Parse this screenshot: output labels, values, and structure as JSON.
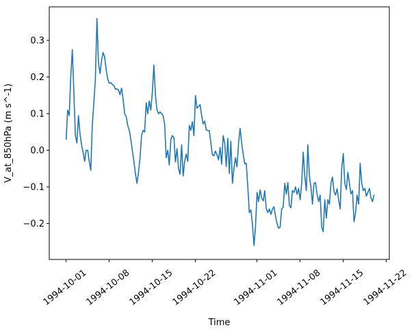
{
  "chart_data": {
    "type": "line",
    "title": "",
    "xlabel": "Time",
    "ylabel": "V_at_850hPa (m s^-1)",
    "line_color": "#1f77b4",
    "axis_color": "#000000",
    "background_color": "#ffffff",
    "grid": false,
    "legend": "none",
    "x_start_date": "1994-10-01",
    "sample_interval_hours": 6,
    "xlim_days": [
      -2.74,
      52.48
    ],
    "ylim": [
      -0.298,
      0.392
    ],
    "x_ticks": [
      {
        "label": "1994-10-01",
        "day": 0
      },
      {
        "label": "1994-10-08",
        "day": 7
      },
      {
        "label": "1994-10-15",
        "day": 14
      },
      {
        "label": "1994-10-22",
        "day": 21
      },
      {
        "label": "1994-11-01",
        "day": 31
      },
      {
        "label": "1994-11-08",
        "day": 38
      },
      {
        "label": "1994-11-15",
        "day": 45
      },
      {
        "label": "1994-11-22",
        "day": 52
      }
    ],
    "y_ticks": [
      {
        "label": "0.3",
        "value": 0.3
      },
      {
        "label": "0.2",
        "value": 0.2
      },
      {
        "label": "0.1",
        "value": 0.1
      },
      {
        "label": "0.0",
        "value": 0.0
      },
      {
        "label": "−0.1",
        "value": -0.1
      },
      {
        "label": "−0.2",
        "value": -0.2
      }
    ],
    "values": [
      0.03,
      0.11,
      0.095,
      0.2,
      0.275,
      0.16,
      0.04,
      0.02,
      0.095,
      0.045,
      0.015,
      -0.005,
      -0.03,
      0.0,
      0.0,
      -0.03,
      -0.055,
      0.07,
      0.13,
      0.195,
      0.36,
      0.24,
      0.21,
      0.245,
      0.267,
      0.255,
      0.22,
      0.195,
      0.183,
      0.185,
      0.18,
      0.177,
      0.167,
      0.168,
      0.165,
      0.152,
      0.17,
      0.14,
      0.1,
      0.092,
      0.068,
      0.055,
      0.03,
      0.0,
      -0.03,
      -0.063,
      -0.09,
      -0.06,
      -0.02,
      0.04,
      0.055,
      0.05,
      0.13,
      0.1,
      0.135,
      0.11,
      0.16,
      0.233,
      0.15,
      0.111,
      0.1,
      0.105,
      0.1,
      0.095,
      0.07,
      -0.02,
      0.0,
      -0.04,
      0.03,
      0.04,
      0.035,
      -0.032,
      0.005,
      -0.05,
      -0.065,
      0.015,
      -0.07,
      -0.03,
      -0.01,
      -0.03,
      0.068,
      0.055,
      0.078,
      0.04,
      0.15,
      0.115,
      0.12,
      0.125,
      0.095,
      0.072,
      0.08,
      0.056,
      0.054,
      0.054,
      0.02,
      -0.012,
      -0.015,
      -0.002,
      -0.012,
      -0.026,
      0.008,
      -0.038,
      0.04,
      0.02,
      -0.044,
      0.033,
      -0.063,
      0.025,
      -0.09,
      -0.05,
      -0.02,
      -0.045,
      0.02,
      0.06,
      0.02,
      -0.01,
      -0.037,
      -0.035,
      -0.1,
      -0.17,
      -0.163,
      -0.2,
      -0.26,
      -0.21,
      -0.115,
      -0.14,
      -0.108,
      -0.13,
      -0.138,
      -0.11,
      -0.16,
      -0.17,
      -0.16,
      -0.175,
      -0.16,
      -0.154,
      -0.18,
      -0.2,
      -0.213,
      -0.21,
      -0.16,
      -0.155,
      -0.09,
      -0.12,
      -0.088,
      -0.15,
      -0.157,
      -0.11,
      -0.115,
      -0.1,
      -0.12,
      -0.104,
      -0.135,
      -0.09,
      -0.005,
      -0.07,
      -0.11,
      0.015,
      -0.07,
      -0.1,
      -0.147,
      -0.09,
      -0.088,
      -0.12,
      -0.14,
      -0.122,
      -0.21,
      -0.222,
      -0.135,
      -0.185,
      -0.135,
      -0.147,
      -0.09,
      -0.073,
      -0.113,
      -0.122,
      -0.105,
      -0.135,
      -0.16,
      -0.05,
      -0.009,
      -0.09,
      -0.107,
      -0.06,
      -0.09,
      -0.119,
      -0.11,
      -0.195,
      -0.17,
      -0.122,
      -0.147,
      -0.035,
      -0.09,
      -0.11,
      -0.104,
      -0.125,
      -0.115,
      -0.104,
      -0.13,
      -0.14,
      -0.122
    ]
  }
}
